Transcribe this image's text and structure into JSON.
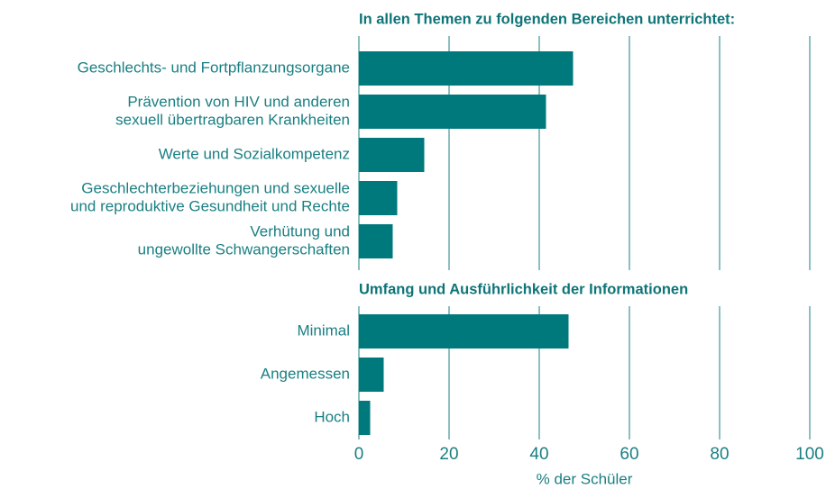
{
  "chart_data": {
    "type": "bar",
    "orientation": "horizontal",
    "color": "#00797c",
    "groups": [
      {
        "title": "In allen Themen zu folgenden Bereichen unterrichtet:",
        "categories": [
          [
            "Geschlechts- und Fortpflanzungsorgane"
          ],
          [
            "Prävention von HIV und anderen",
            "sexuell übertragbaren Krankheiten"
          ],
          [
            "Werte und Sozialkompetenz"
          ],
          [
            "Geschlechterbeziehungen und sexuelle",
            "und reproduktive Gesundheit und Rechte"
          ],
          [
            "Verhütung und",
            "ungewollte Schwangerschaften"
          ]
        ],
        "values": [
          47.5,
          41.5,
          14.5,
          8.5,
          7.5
        ]
      },
      {
        "title": "Umfang und Ausführlichkeit der Informationen",
        "categories": [
          [
            "Minimal"
          ],
          [
            "Angemessen"
          ],
          [
            "Hoch"
          ]
        ],
        "values": [
          46.5,
          5.5,
          2.5
        ]
      }
    ],
    "xlabel": "% der Schüler",
    "xlim": [
      0,
      100
    ],
    "xticks": [
      0,
      20,
      40,
      60,
      80,
      100
    ],
    "grid": true
  }
}
